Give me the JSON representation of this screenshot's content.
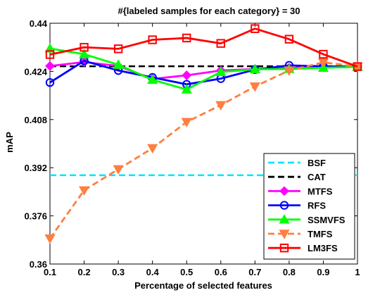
{
  "chart_data": {
    "type": "line",
    "title": "#{labeled samples for each category} = 30",
    "xlabel": "Percentage of selected features",
    "ylabel": "mAP",
    "xlim": [
      0.1,
      1
    ],
    "ylim": [
      0.36,
      0.44
    ],
    "x": [
      0.1,
      0.2,
      0.3,
      0.4,
      0.5,
      0.6,
      0.7,
      0.8,
      0.9,
      1
    ],
    "x_ticks": [
      "0.1",
      "0.2",
      "0.3",
      "0.4",
      "0.5",
      "0.6",
      "0.7",
      "0.8",
      "0.9",
      "1"
    ],
    "y_ticks_values": [
      0.36,
      0.376,
      0.392,
      0.408,
      0.424,
      0.44
    ],
    "y_ticks": [
      "0.36",
      "0.376",
      "0.392",
      "0.408",
      "0.424",
      "0.44"
    ],
    "grid": false,
    "legend_position": "lower-right",
    "series": [
      {
        "name": "BSF",
        "style": "hline",
        "value": 0.3895,
        "color": "#00e5ff",
        "dash": "dashed",
        "marker": "none"
      },
      {
        "name": "CAT",
        "style": "hline",
        "value": 0.4257,
        "color": "#000000",
        "dash": "dashed",
        "marker": "none"
      },
      {
        "name": "MTFS",
        "values": [
          0.4258,
          0.4271,
          0.4258,
          0.4215,
          0.4227,
          0.4243,
          0.4248,
          0.4252,
          0.4253,
          0.4256
        ],
        "color": "#ff00ff",
        "dash": "solid",
        "marker": "diamond"
      },
      {
        "name": "RFS",
        "values": [
          0.4203,
          0.4275,
          0.4243,
          0.422,
          0.4197,
          0.4216,
          0.4246,
          0.426,
          0.4257,
          0.4256
        ],
        "color": "#0000ff",
        "dash": "solid",
        "marker": "circle"
      },
      {
        "name": "SSMVFS",
        "values": [
          0.4316,
          0.4297,
          0.4262,
          0.4212,
          0.418,
          0.4238,
          0.4247,
          0.4248,
          0.4252,
          0.4255
        ],
        "color": "#00ff00",
        "dash": "solid",
        "marker": "triangle-up"
      },
      {
        "name": "TMFS",
        "values": [
          0.3685,
          0.3845,
          0.3915,
          0.3985,
          0.4072,
          0.4128,
          0.419,
          0.4243,
          0.427,
          0.4256
        ],
        "color": "#ff7f3f",
        "dash": "dashed",
        "marker": "triangle-down"
      },
      {
        "name": "LM3FS",
        "values": [
          0.4296,
          0.432,
          0.4315,
          0.4345,
          0.4351,
          0.4333,
          0.4382,
          0.4347,
          0.4297,
          0.4256
        ],
        "color": "#ff0000",
        "dash": "solid",
        "marker": "square"
      }
    ]
  }
}
